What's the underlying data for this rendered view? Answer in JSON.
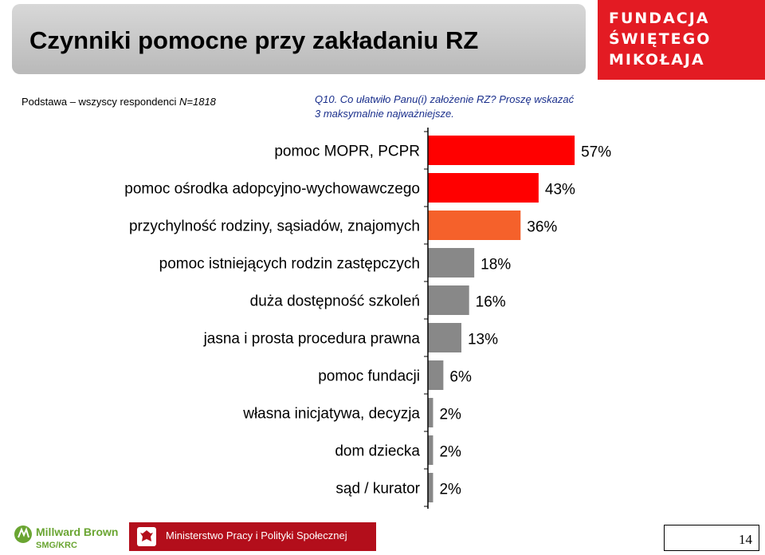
{
  "header": {
    "title": "Czynniki pomocne przy zakładaniu RZ",
    "logo_lines": [
      "FUNDACJA",
      "ŚWIĘTEGO",
      "MIKOŁAJA"
    ]
  },
  "base": {
    "label": "Podstawa – wszyscy respondenci",
    "n": "N=1818"
  },
  "question": {
    "line1": "Q10. Co ułatwiło Panu(i) założenie RZ? Proszę wskazać",
    "line2": "3 maksymalnie najważniejsze."
  },
  "chart_data": {
    "type": "bar",
    "orientation": "horizontal",
    "categories": [
      "pomoc MOPR, PCPR",
      "pomoc ośrodka adopcyjno-wychowawczego",
      "przychylność rodziny, sąsiadów, znajomych",
      "pomoc istniejących rodzin zastępczych",
      "duża dostępność szkoleń",
      "jasna i prosta procedura prawna",
      "pomoc fundacji",
      "własna inicjatywa, decyzja",
      "dom dziecka",
      "sąd / kurator"
    ],
    "values": [
      57,
      43,
      36,
      18,
      16,
      13,
      6,
      2,
      2,
      2
    ],
    "value_labels": [
      "57%",
      "43%",
      "36%",
      "18%",
      "16%",
      "13%",
      "6%",
      "2%",
      "2%",
      "2%"
    ],
    "bar_colors": [
      "#ff0000",
      "#ff0000",
      "#f5612b",
      "#888888",
      "#888888",
      "#888888",
      "#888888",
      "#888888",
      "#888888",
      "#888888"
    ],
    "xlim": [
      0,
      60
    ]
  },
  "footer": {
    "brand_top": "Millward Brown",
    "brand_bottom": "SMG/KRC",
    "ministry": "Ministerstwo Pracy i Polityki Społecznej",
    "page": "14"
  }
}
